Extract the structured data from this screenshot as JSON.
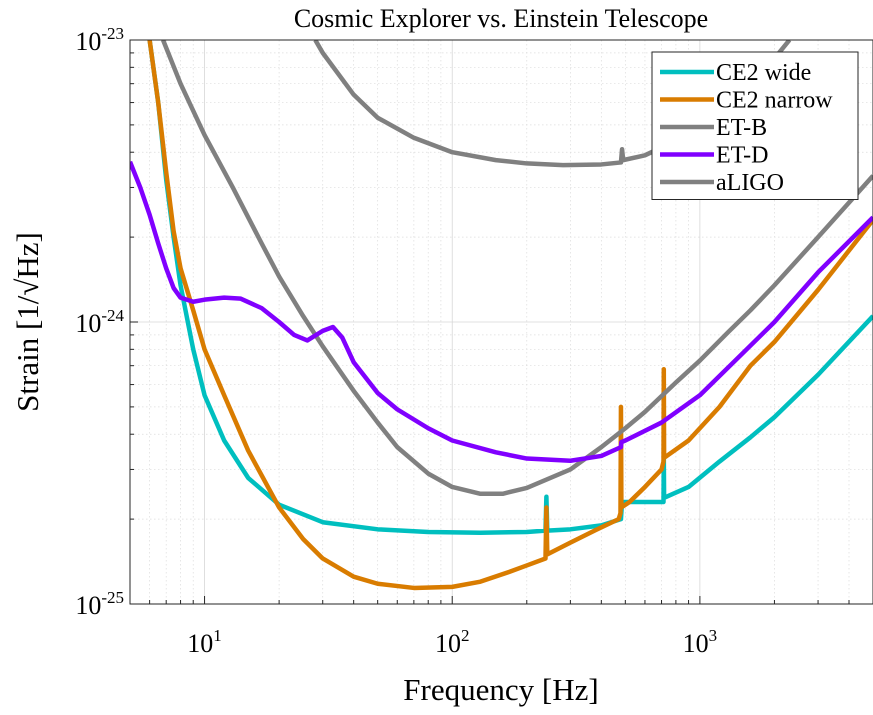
{
  "chart_data": {
    "type": "line",
    "title": "Cosmic Explorer vs. Einstein Telescope",
    "xlabel": "Frequency [Hz]",
    "ylabel": "Strain [1/√Hz]",
    "xscale": "log",
    "yscale": "log",
    "xlim": [
      5,
      5000
    ],
    "ylim": [
      1e-25,
      1e-23
    ],
    "grid": true,
    "legend_location": "top-right",
    "x_ticks": [
      {
        "base": "10",
        "exp": "1",
        "value": 10
      },
      {
        "base": "10",
        "exp": "2",
        "value": 100
      },
      {
        "base": "10",
        "exp": "3",
        "value": 1000
      }
    ],
    "y_ticks": [
      {
        "base": "10",
        "exp": "-25",
        "value": 1e-25
      },
      {
        "base": "10",
        "exp": "-24",
        "value": 1e-24
      },
      {
        "base": "10",
        "exp": "-23",
        "value": 1e-23
      }
    ],
    "series": [
      {
        "name": "CE2 wide",
        "color": "#00BFBF",
        "points": [
          [
            6,
            1e-23
          ],
          [
            6.5,
            6e-24
          ],
          [
            7,
            3.2e-24
          ],
          [
            7.5,
            2e-24
          ],
          [
            8,
            1.35e-24
          ],
          [
            9,
            8e-25
          ],
          [
            10,
            5.5e-25
          ],
          [
            12,
            3.8e-25
          ],
          [
            15,
            2.8e-25
          ],
          [
            20,
            2.25e-25
          ],
          [
            30,
            1.95e-25
          ],
          [
            50,
            1.84e-25
          ],
          [
            80,
            1.8e-25
          ],
          [
            130,
            1.79e-25
          ],
          [
            200,
            1.8e-25
          ],
          [
            238,
            1.82e-25
          ],
          [
            240,
            2.4e-25
          ],
          [
            242,
            1.82e-25
          ],
          [
            300,
            1.84e-25
          ],
          [
            400,
            1.9e-25
          ],
          [
            480,
            2e-25
          ],
          [
            485,
            2.3e-25
          ],
          [
            560,
            2.3e-25
          ],
          [
            690,
            2.3e-25
          ],
          [
            713,
            2.3e-25
          ],
          [
            715,
            3.35e-25
          ],
          [
            717,
            2.38e-25
          ],
          [
            900,
            2.6e-25
          ],
          [
            1200,
            3.2e-25
          ],
          [
            1600,
            3.9e-25
          ],
          [
            2000,
            4.6e-25
          ],
          [
            3000,
            6.5e-25
          ],
          [
            5000,
            1.05e-24
          ]
        ]
      },
      {
        "name": "CE2 narrow",
        "color": "#D97C00",
        "points": [
          [
            6,
            1e-23
          ],
          [
            6.5,
            6e-24
          ],
          [
            7,
            3.4e-24
          ],
          [
            7.5,
            2.1e-24
          ],
          [
            8,
            1.55e-24
          ],
          [
            9,
            1.1e-24
          ],
          [
            10,
            8e-25
          ],
          [
            12,
            5.5e-25
          ],
          [
            15,
            3.5e-25
          ],
          [
            20,
            2.2e-25
          ],
          [
            25,
            1.7e-25
          ],
          [
            30,
            1.45e-25
          ],
          [
            40,
            1.25e-25
          ],
          [
            50,
            1.18e-25
          ],
          [
            70,
            1.14e-25
          ],
          [
            100,
            1.15e-25
          ],
          [
            130,
            1.2e-25
          ],
          [
            170,
            1.3e-25
          ],
          [
            200,
            1.37e-25
          ],
          [
            238,
            1.45e-25
          ],
          [
            240,
            2.2e-25
          ],
          [
            242,
            1.5e-25
          ],
          [
            300,
            1.65e-25
          ],
          [
            380,
            1.83e-25
          ],
          [
            470,
            2e-25
          ],
          [
            478,
            2.1e-25
          ],
          [
            480,
            5e-25
          ],
          [
            482,
            2.2e-25
          ],
          [
            520,
            2.3e-25
          ],
          [
            600,
            2.6e-25
          ],
          [
            700,
            3e-25
          ],
          [
            713,
            3.2e-25
          ],
          [
            715,
            6.8e-25
          ],
          [
            717,
            3.3e-25
          ],
          [
            900,
            3.8e-25
          ],
          [
            1200,
            5e-25
          ],
          [
            1600,
            7e-25
          ],
          [
            2000,
            8.5e-25
          ],
          [
            3000,
            1.3e-24
          ],
          [
            5000,
            2.3e-24
          ]
        ]
      },
      {
        "name": "ET-B",
        "color": "#808080",
        "points": [
          [
            6.8,
            1e-23
          ],
          [
            8,
            7e-24
          ],
          [
            10,
            4.6e-24
          ],
          [
            13,
            3e-24
          ],
          [
            17,
            1.9e-24
          ],
          [
            20,
            1.45e-24
          ],
          [
            25,
            1.05e-24
          ],
          [
            30,
            8.2e-25
          ],
          [
            40,
            5.7e-25
          ],
          [
            50,
            4.4e-25
          ],
          [
            60,
            3.6e-25
          ],
          [
            80,
            2.9e-25
          ],
          [
            100,
            2.6e-25
          ],
          [
            130,
            2.46e-25
          ],
          [
            160,
            2.46e-25
          ],
          [
            200,
            2.58e-25
          ],
          [
            300,
            3e-25
          ],
          [
            400,
            3.6e-25
          ],
          [
            500,
            4.2e-25
          ],
          [
            600,
            4.8e-25
          ],
          [
            800,
            6.1e-25
          ],
          [
            1000,
            7.3e-25
          ],
          [
            1300,
            9.2e-25
          ],
          [
            1600,
            1.1e-24
          ],
          [
            2000,
            1.35e-24
          ],
          [
            3000,
            2e-24
          ],
          [
            4000,
            2.65e-24
          ],
          [
            5000,
            3.3e-24
          ]
        ]
      },
      {
        "name": "ET-D",
        "color": "#8000FF",
        "points": [
          [
            5,
            3.7e-24
          ],
          [
            5.5,
            3e-24
          ],
          [
            6,
            2.4e-24
          ],
          [
            6.5,
            1.9e-24
          ],
          [
            7,
            1.55e-24
          ],
          [
            7.5,
            1.32e-24
          ],
          [
            8,
            1.22e-24
          ],
          [
            9,
            1.18e-24
          ],
          [
            10,
            1.2e-24
          ],
          [
            12,
            1.22e-24
          ],
          [
            14,
            1.21e-24
          ],
          [
            17,
            1.12e-24
          ],
          [
            20,
            1e-24
          ],
          [
            23,
            9e-25
          ],
          [
            26,
            8.6e-25
          ],
          [
            30,
            9.3e-25
          ],
          [
            33,
            9.6e-25
          ],
          [
            36,
            8.8e-25
          ],
          [
            40,
            7.2e-25
          ],
          [
            50,
            5.6e-25
          ],
          [
            60,
            4.9e-25
          ],
          [
            80,
            4.2e-25
          ],
          [
            100,
            3.8e-25
          ],
          [
            150,
            3.45e-25
          ],
          [
            200,
            3.28e-25
          ],
          [
            300,
            3.22e-25
          ],
          [
            400,
            3.35e-25
          ],
          [
            480,
            3.6e-25
          ],
          [
            482,
            3.75e-25
          ],
          [
            500,
            3.8e-25
          ],
          [
            700,
            4.4e-25
          ],
          [
            1000,
            5.5e-25
          ],
          [
            1500,
            7.8e-25
          ],
          [
            2000,
            1e-24
          ],
          [
            3000,
            1.5e-24
          ],
          [
            5000,
            2.35e-24
          ]
        ]
      },
      {
        "name": "aLIGO",
        "color": "#808080",
        "points": [
          [
            28,
            1e-23
          ],
          [
            30,
            9e-24
          ],
          [
            40,
            6.4e-24
          ],
          [
            50,
            5.3e-24
          ],
          [
            70,
            4.5e-24
          ],
          [
            100,
            4e-24
          ],
          [
            150,
            3.75e-24
          ],
          [
            200,
            3.65e-24
          ],
          [
            280,
            3.6e-24
          ],
          [
            400,
            3.62e-24
          ],
          [
            480,
            3.68e-24
          ],
          [
            485,
            4.1e-24
          ],
          [
            490,
            3.75e-24
          ],
          [
            600,
            3.9e-24
          ],
          [
            800,
            4.4e-24
          ],
          [
            1000,
            5e-24
          ],
          [
            1300,
            6e-24
          ],
          [
            1600,
            7.2e-24
          ],
          [
            2000,
            8.6e-24
          ],
          [
            2300,
            1e-23
          ]
        ]
      }
    ]
  }
}
